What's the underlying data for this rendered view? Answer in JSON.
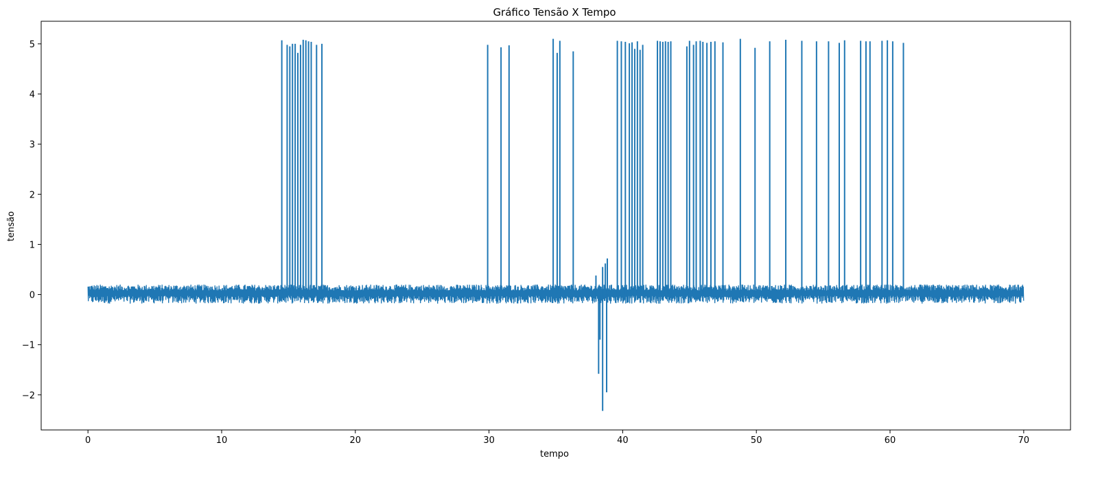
{
  "chart_data": {
    "type": "line",
    "title": "Gráfico Tensão X Tempo",
    "xlabel": "tempo",
    "ylabel": "tensão",
    "xlim": [
      -3.5,
      73.5
    ],
    "ylim": [
      -2.7,
      5.45
    ],
    "xticks": [
      0,
      10,
      20,
      30,
      40,
      50,
      60,
      70
    ],
    "yticks": [
      -2,
      -1,
      0,
      1,
      2,
      3,
      4,
      5
    ],
    "ytick_labels": [
      "−2",
      "−1",
      "0",
      "1",
      "2",
      "3",
      "4",
      "5"
    ],
    "grid": false,
    "line_color": "#1f77b4",
    "series": [
      {
        "baseline": {
          "x_range": [
            0,
            70
          ],
          "noise_min": -0.18,
          "noise_max": 0.2
        },
        "spikes": [
          {
            "x": 14.5,
            "y": 5.07
          },
          {
            "x": 14.9,
            "y": 4.98
          },
          {
            "x": 15.1,
            "y": 4.95
          },
          {
            "x": 15.3,
            "y": 5.0
          },
          {
            "x": 15.5,
            "y": 5.0
          },
          {
            "x": 15.7,
            "y": 4.82
          },
          {
            "x": 15.9,
            "y": 4.98
          },
          {
            "x": 16.1,
            "y": 5.08
          },
          {
            "x": 16.3,
            "y": 5.07
          },
          {
            "x": 16.5,
            "y": 5.05
          },
          {
            "x": 16.7,
            "y": 5.04
          },
          {
            "x": 17.1,
            "y": 4.98
          },
          {
            "x": 17.5,
            "y": 5.0
          },
          {
            "x": 29.9,
            "y": 4.98
          },
          {
            "x": 30.9,
            "y": 4.93
          },
          {
            "x": 31.5,
            "y": 4.97
          },
          {
            "x": 34.8,
            "y": 5.1
          },
          {
            "x": 35.1,
            "y": 4.82
          },
          {
            "x": 35.3,
            "y": 5.06
          },
          {
            "x": 36.3,
            "y": 4.85
          },
          {
            "x": 39.6,
            "y": 5.06
          },
          {
            "x": 39.9,
            "y": 5.05
          },
          {
            "x": 40.2,
            "y": 5.04
          },
          {
            "x": 40.5,
            "y": 5.01
          },
          {
            "x": 40.7,
            "y": 5.03
          },
          {
            "x": 40.9,
            "y": 4.9
          },
          {
            "x": 41.1,
            "y": 5.05
          },
          {
            "x": 41.3,
            "y": 4.88
          },
          {
            "x": 41.5,
            "y": 4.98
          },
          {
            "x": 42.6,
            "y": 5.06
          },
          {
            "x": 42.8,
            "y": 5.05
          },
          {
            "x": 43.0,
            "y": 5.04
          },
          {
            "x": 43.2,
            "y": 5.05
          },
          {
            "x": 43.4,
            "y": 5.04
          },
          {
            "x": 43.6,
            "y": 5.05
          },
          {
            "x": 44.8,
            "y": 4.95
          },
          {
            "x": 45.0,
            "y": 5.06
          },
          {
            "x": 45.3,
            "y": 4.98
          },
          {
            "x": 45.5,
            "y": 5.05
          },
          {
            "x": 45.8,
            "y": 5.06
          },
          {
            "x": 46.0,
            "y": 5.04
          },
          {
            "x": 46.3,
            "y": 5.02
          },
          {
            "x": 46.6,
            "y": 5.04
          },
          {
            "x": 46.9,
            "y": 5.05
          },
          {
            "x": 47.5,
            "y": 5.03
          },
          {
            "x": 48.8,
            "y": 5.1
          },
          {
            "x": 49.9,
            "y": 4.92
          },
          {
            "x": 51.0,
            "y": 5.05
          },
          {
            "x": 52.2,
            "y": 5.08
          },
          {
            "x": 53.4,
            "y": 5.06
          },
          {
            "x": 54.5,
            "y": 5.05
          },
          {
            "x": 55.4,
            "y": 5.05
          },
          {
            "x": 56.2,
            "y": 5.02
          },
          {
            "x": 56.6,
            "y": 5.07
          },
          {
            "x": 57.8,
            "y": 5.06
          },
          {
            "x": 58.2,
            "y": 5.05
          },
          {
            "x": 58.5,
            "y": 5.05
          },
          {
            "x": 59.4,
            "y": 5.06
          },
          {
            "x": 59.8,
            "y": 5.07
          },
          {
            "x": 60.2,
            "y": 5.05
          },
          {
            "x": 61.0,
            "y": 5.02
          }
        ],
        "dips": [
          {
            "x": 38.0,
            "y": 0.38
          },
          {
            "x": 38.2,
            "y": -1.58
          },
          {
            "x": 38.3,
            "y": -0.9
          },
          {
            "x": 38.5,
            "y": 0.55
          },
          {
            "x": 38.5,
            "y": -2.32
          },
          {
            "x": 38.7,
            "y": 0.62
          },
          {
            "x": 38.8,
            "y": -1.95
          },
          {
            "x": 38.85,
            "y": 0.72
          }
        ]
      }
    ]
  }
}
